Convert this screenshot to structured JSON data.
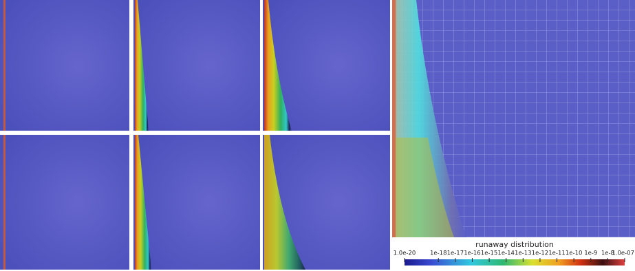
{
  "colorbar": {
    "title": "runaway distribution",
    "range": [
      1e-20,
      1e-07
    ],
    "log": true,
    "ticks": [
      {
        "value": 1e-20,
        "label": "1.0e-20"
      },
      {
        "value": 1e-18,
        "label": "1e-18"
      },
      {
        "value": 1e-17,
        "label": "1e-17"
      },
      {
        "value": 1e-16,
        "label": "1e-16"
      },
      {
        "value": 1e-15,
        "label": "1e-15"
      },
      {
        "value": 1e-14,
        "label": "1e-14"
      },
      {
        "value": 1e-13,
        "label": "1e-13"
      },
      {
        "value": 1e-12,
        "label": "1e-12"
      },
      {
        "value": 1e-11,
        "label": "1e-11"
      },
      {
        "value": 1e-10,
        "label": "1e-10"
      },
      {
        "value": 1e-09,
        "label": "1e-9"
      },
      {
        "value": 1e-08,
        "label": "1e-8"
      },
      {
        "value": 1e-07,
        "label": "1.0e-07"
      }
    ]
  }
}
